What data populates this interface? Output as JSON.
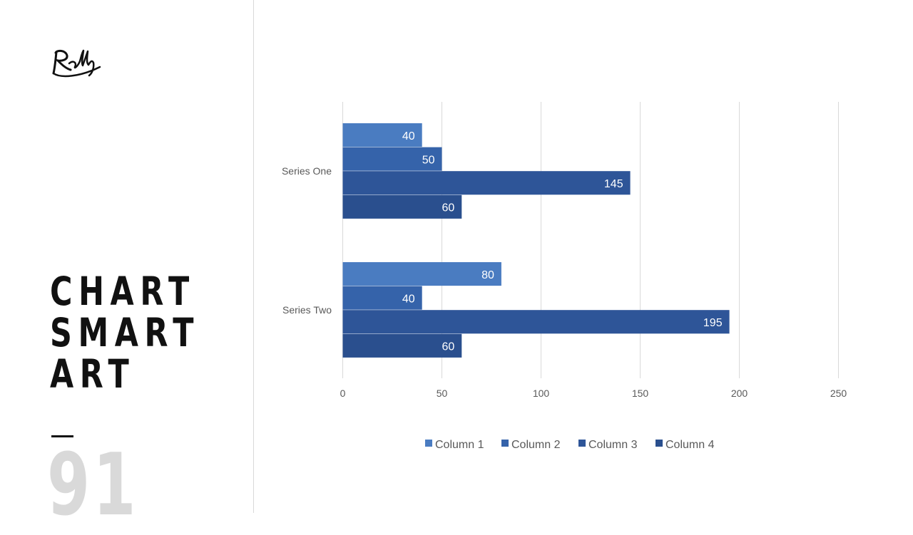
{
  "slide": {
    "logo_text": "Rally",
    "title_lines": [
      "CHART",
      "SMART",
      "ART"
    ],
    "number": "91"
  },
  "colors": {
    "title": "#111111",
    "number": "#d9d9d9",
    "gridline": "#d9d9d9",
    "tick_label": "#595959",
    "data_label": "#ffffff"
  },
  "chart_data": {
    "type": "bar",
    "orientation": "horizontal",
    "categories": [
      "Series One",
      "Series Two"
    ],
    "series": [
      {
        "name": "Column 1",
        "color": "#4a7cc1",
        "values": [
          40,
          80
        ]
      },
      {
        "name": "Column 2",
        "color": "#3563aa",
        "values": [
          50,
          40
        ]
      },
      {
        "name": "Column 3",
        "color": "#2e5598",
        "values": [
          145,
          195
        ]
      },
      {
        "name": "Column 4",
        "color": "#2a4f8e",
        "values": [
          60,
          60
        ]
      }
    ],
    "xlim": [
      0,
      250
    ],
    "xticks": [
      "0",
      "50",
      "100",
      "150",
      "200",
      "250"
    ],
    "grid": "vertical",
    "legend": "bottom",
    "data_labels": true
  }
}
